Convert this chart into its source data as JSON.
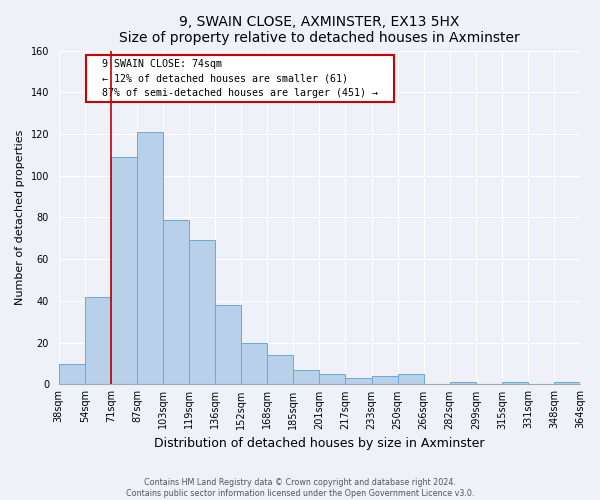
{
  "title": "9, SWAIN CLOSE, AXMINSTER, EX13 5HX",
  "subtitle": "Size of property relative to detached houses in Axminster",
  "xlabel": "Distribution of detached houses by size in Axminster",
  "ylabel": "Number of detached properties",
  "bar_heights": [
    10,
    42,
    109,
    121,
    79,
    69,
    38,
    20,
    14,
    7,
    5,
    3,
    4,
    5,
    0,
    1,
    0,
    1,
    0,
    1
  ],
  "bin_labels": [
    "38sqm",
    "54sqm",
    "71sqm",
    "87sqm",
    "103sqm",
    "119sqm",
    "136sqm",
    "152sqm",
    "168sqm",
    "185sqm",
    "201sqm",
    "217sqm",
    "233sqm",
    "250sqm",
    "266sqm",
    "282sqm",
    "299sqm",
    "315sqm",
    "331sqm",
    "348sqm",
    "364sqm"
  ],
  "bar_color": "#b8d0ea",
  "bar_edge_color": "#6aaad4",
  "vline_x": 2.0,
  "vline_color": "#bb0000",
  "annotation_title": "9 SWAIN CLOSE: 74sqm",
  "annotation_line1": "← 12% of detached houses are smaller (61)",
  "annotation_line2": "87% of semi-detached houses are larger (451) →",
  "ylim": [
    0,
    160
  ],
  "yticks": [
    0,
    20,
    40,
    60,
    80,
    100,
    120,
    140,
    160
  ],
  "footer1": "Contains HM Land Registry data © Crown copyright and database right 2024.",
  "footer2": "Contains public sector information licensed under the Open Government Licence v3.0.",
  "bg_color": "#eef2f8",
  "plot_bg_color": "#eef2f8",
  "grid_color": "#ffffff",
  "title_fontsize": 10,
  "ylabel_fontsize": 8,
  "xlabel_fontsize": 9,
  "tick_fontsize": 7
}
